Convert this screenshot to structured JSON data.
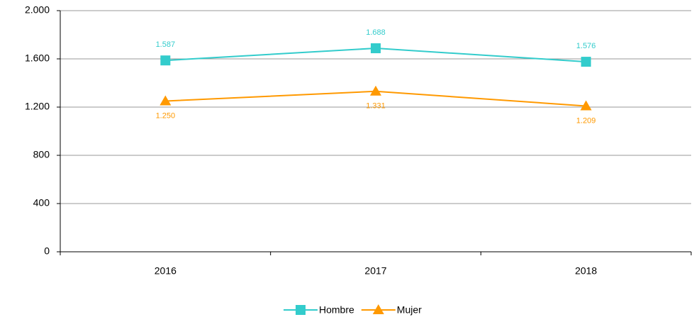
{
  "chart_data": {
    "type": "line",
    "categories": [
      "2016",
      "2017",
      "2018"
    ],
    "series": [
      {
        "name": "Hombre",
        "color": "#33cccc",
        "marker": "square",
        "values": [
          1587,
          1688,
          1576
        ],
        "value_labels": [
          "1.587",
          "1.688",
          "1.576"
        ]
      },
      {
        "name": "Mujer",
        "color": "#ff9900",
        "marker": "triangle",
        "values": [
          1250,
          1331,
          1209
        ],
        "value_labels": [
          "1.250",
          "1.331",
          "1.209"
        ]
      }
    ],
    "ylim": [
      0,
      2000
    ],
    "yticks": [
      0,
      400,
      800,
      {
        "value": 1200,
        "label": "1.200"
      },
      {
        "value": 1600,
        "label": "1.600"
      },
      {
        "value": 2000,
        "label": "2.000"
      }
    ],
    "grid": true,
    "legend": "bottom"
  }
}
